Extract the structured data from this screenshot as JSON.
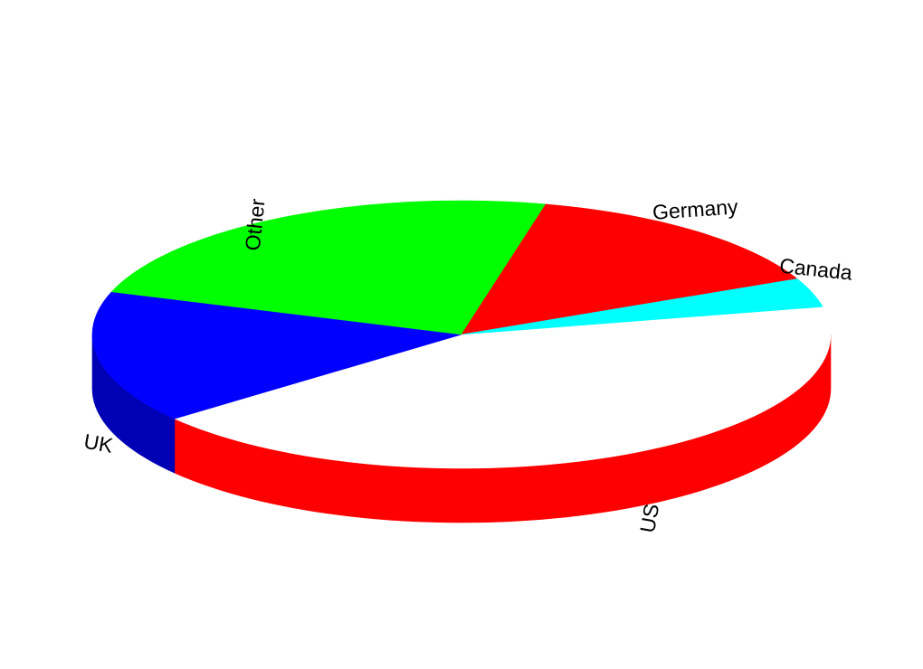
{
  "chart_data": {
    "type": "pie",
    "style": "3d-exploded",
    "title": "",
    "slices": [
      {
        "label": "US",
        "value": 42.5,
        "color": "#ffffff",
        "side_color": "#ff0000"
      },
      {
        "label": "UK",
        "value": 16.0,
        "color": "#0000ff",
        "side_color": "#0000b4"
      },
      {
        "label": "Other",
        "value": 23.5,
        "color": "#00ff00",
        "side_color": "#00b400"
      },
      {
        "label": "Germany",
        "value": 14.5,
        "color": "#ff0000",
        "side_color": "#b40000"
      },
      {
        "label": "Canada",
        "value": 3.5,
        "color": "#00ffff",
        "side_color": "#00b4b4"
      }
    ]
  }
}
